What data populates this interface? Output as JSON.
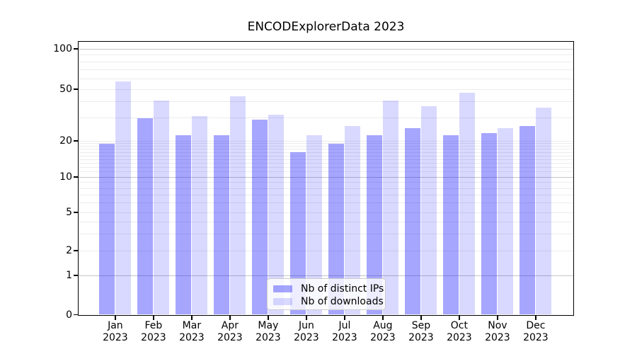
{
  "figure": {
    "title": "ENCODExplorerData 2023"
  },
  "chart_data": {
    "type": "bar",
    "title": "ENCODExplorerData 2023",
    "categories": [
      "Jan 2023",
      "Feb 2023",
      "Mar 2023",
      "Apr 2023",
      "May 2023",
      "Jun 2023",
      "Jul 2023",
      "Aug 2023",
      "Sep 2023",
      "Oct 2023",
      "Nov 2023",
      "Dec 2023"
    ],
    "series": [
      {
        "name": "Nb of distinct IPs",
        "color": "rgba(0,0,255,0.35)",
        "values": [
          19,
          30,
          22,
          22,
          29,
          16,
          19,
          22,
          25,
          22,
          23,
          26
        ]
      },
      {
        "name": "Nb of downloads",
        "color": "rgba(0,0,255,0.15)",
        "values": [
          57,
          41,
          31,
          44,
          32,
          22,
          26,
          41,
          37,
          47,
          25,
          36
        ]
      }
    ],
    "xlabel": "",
    "ylabel": "",
    "yscale": "symlog",
    "ylim": [
      0,
      113
    ],
    "yticks": [
      0,
      1,
      2,
      5,
      10,
      20,
      50,
      100
    ],
    "ytick_labels": [
      "0",
      "1",
      "2",
      "5",
      "10",
      "20",
      "50",
      "100"
    ],
    "grid": true,
    "legend_position": "lower-center-inside",
    "bar_grouping": "grouped pairs per month"
  },
  "colors": {
    "background": "#ffffff",
    "bar_distinct_ips": "rgba(0,0,255,0.35)",
    "bar_downloads": "rgba(0,0,255,0.15)",
    "grid_major": "#c6c6c6",
    "grid_minor": "#ececec",
    "axis": "#000000",
    "legend_border": "#cccccc",
    "legend_bg": "rgba(255,255,255,0.8)"
  }
}
